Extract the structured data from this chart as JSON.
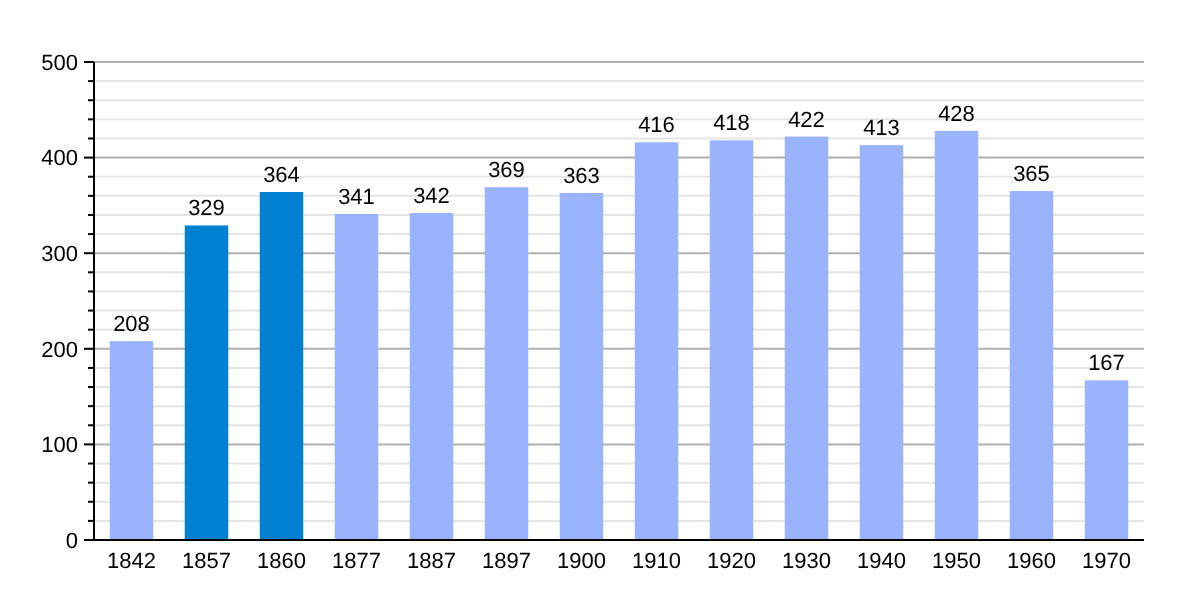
{
  "chart_data": {
    "type": "bar",
    "categories": [
      "1842",
      "1857",
      "1860",
      "1877",
      "1887",
      "1897",
      "1900",
      "1910",
      "1920",
      "1930",
      "1940",
      "1950",
      "1960",
      "1970"
    ],
    "values": [
      208,
      329,
      364,
      341,
      342,
      369,
      363,
      416,
      418,
      422,
      413,
      428,
      365,
      167
    ],
    "colors": [
      "#99b3ff",
      "#0080d0",
      "#0080d0",
      "#99b3ff",
      "#99b3ff",
      "#99b3ff",
      "#99b3ff",
      "#99b3ff",
      "#99b3ff",
      "#99b3ff",
      "#99b3ff",
      "#99b3ff",
      "#99b3ff",
      "#99b3ff"
    ],
    "ylim": [
      0,
      500
    ],
    "yticks": [
      0,
      100,
      200,
      300,
      400,
      500
    ],
    "grid": "y",
    "data_labels": true
  }
}
